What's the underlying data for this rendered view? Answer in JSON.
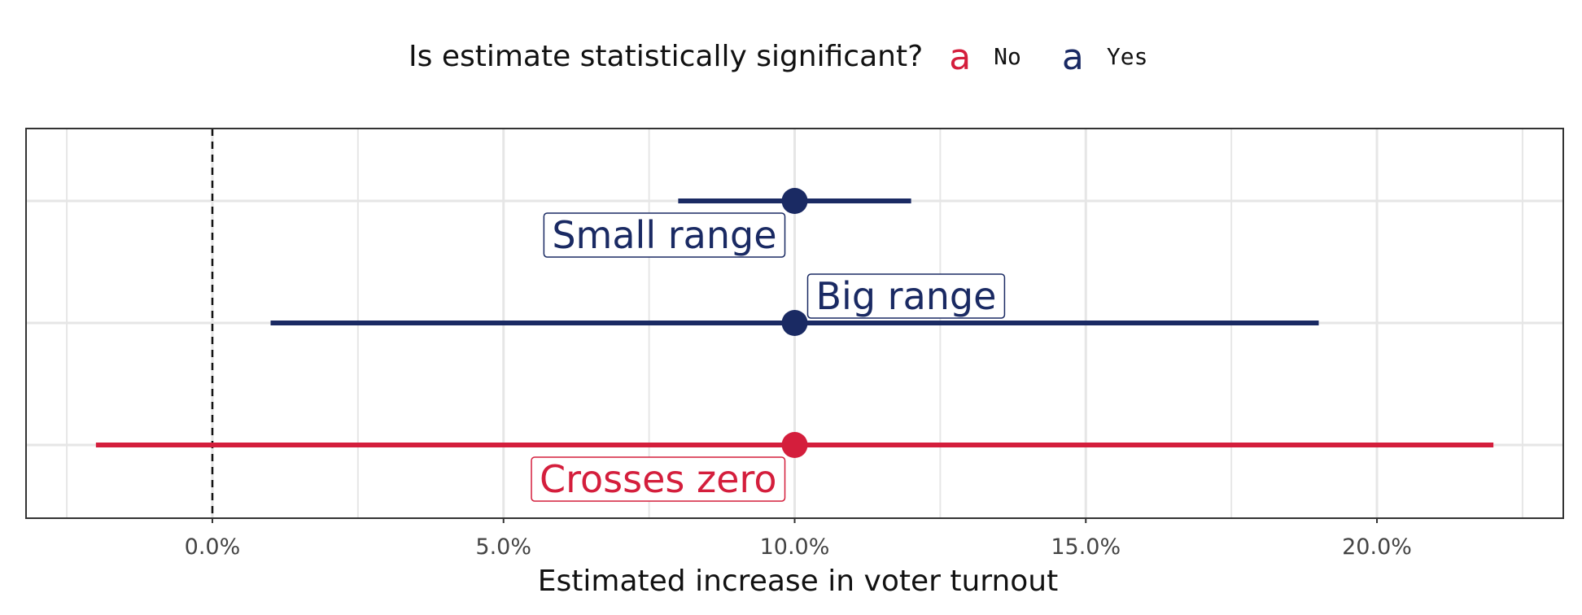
{
  "chart_data": {
    "type": "scatter",
    "xlabel": "Estimated increase in voter turnout",
    "xlim": [
      -3.2,
      23.2
    ],
    "x_ticks": [
      0,
      5,
      10,
      15,
      20
    ],
    "x_tick_labels": [
      "0.0%",
      "5.0%",
      "10.0%",
      "15.0%",
      "20.0%"
    ],
    "reference_line_x": 0,
    "grid": true,
    "legend": {
      "title": "Is estimate statistically significant?",
      "position": "top",
      "key_glyph": "a",
      "entries": [
        {
          "label": "No",
          "color": "#D41E3C"
        },
        {
          "label": "Yes",
          "color": "#1A2A63"
        }
      ]
    },
    "series": [
      {
        "label": "Small range",
        "estimate": 10,
        "low": 8,
        "high": 12,
        "significant": "Yes",
        "color": "#1A2A63"
      },
      {
        "label": "Big range",
        "estimate": 10,
        "low": 1,
        "high": 19,
        "significant": "Yes",
        "color": "#1A2A63"
      },
      {
        "label": "Crosses zero",
        "estimate": 10,
        "low": -2,
        "high": 22,
        "significant": "No",
        "color": "#D41E3C"
      }
    ]
  }
}
